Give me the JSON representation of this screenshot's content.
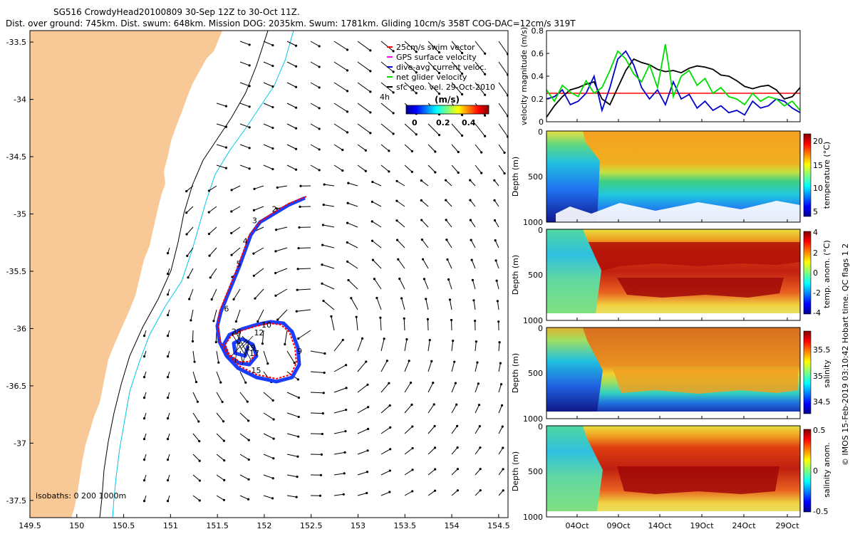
{
  "header": {
    "line1": "SG516 CrowdyHead20100809 30-Sep 12Z to 30-Oct 11Z.",
    "line2": "Dist. over ground: 745km. Dist. swum: 648km. Mission DOG: 2035km. Swum: 1781km. Gliding 10cm/s 358T COG-DAC=12cm/s 319T"
  },
  "footer": {
    "isobaths": "isobaths: 0 200 1000m",
    "credit": "© IMOS 15-Feb-2019 03:10:42 Hobart time. QC flags 1 2"
  },
  "legend": {
    "items": [
      {
        "label": "25cm/s swim vector",
        "color": "#ff0000"
      },
      {
        "label": "GPS surface velocity",
        "color": "#ff00ff"
      },
      {
        "label": "dive-avg current veloc.",
        "color": "#0000cc"
      },
      {
        "label": "net glider velocity",
        "color": "#00dd00"
      },
      {
        "label": "sfc geo. vel. 29-Oct-2010",
        "color": "#000000"
      }
    ],
    "interval": "4h",
    "colorbar_title": "(m/s)",
    "colorbar_ticks": [
      "0",
      "0.2",
      "0.4"
    ]
  },
  "colors": {
    "land": "#f8c896",
    "isobath_200": "#000000",
    "isobath_1000": "#00c8e6",
    "track_blue": "#1a3cff",
    "swim_red": "#ff0000"
  },
  "chart_data": [
    {
      "type": "scatter",
      "name": "track map",
      "x_ticks": [
        "149.5",
        "150",
        "150.5",
        "151",
        "151.5",
        "152",
        "152.5",
        "153",
        "153.5",
        "154",
        "154.5"
      ],
      "y_ticks": [
        "-33.5",
        "-34",
        "-34.5",
        "-35",
        "-35.5",
        "-36",
        "-36.5",
        "-37",
        "-37.5"
      ],
      "xlim": [
        149.5,
        154.6
      ],
      "ylim": [
        -37.65,
        -33.4
      ],
      "day_labels": [
        {
          "label": "2",
          "lon": 152.08,
          "lat": -34.98
        },
        {
          "label": "3",
          "lon": 151.87,
          "lat": -35.08
        },
        {
          "label": "4",
          "lon": 151.77,
          "lat": -35.26
        },
        {
          "label": "5",
          "lon": 151.7,
          "lat": -35.46
        },
        {
          "label": "6",
          "lon": 151.57,
          "lat": -35.85
        },
        {
          "label": "9",
          "lon": 152.35,
          "lat": -36.22
        },
        {
          "label": "10",
          "lon": 151.97,
          "lat": -35.99
        },
        {
          "label": "12",
          "lon": 151.89,
          "lat": -36.06
        },
        {
          "label": "15",
          "lon": 151.86,
          "lat": -36.39
        },
        {
          "label": "17",
          "lon": 151.84,
          "lat": -36.24
        },
        {
          "label": "19",
          "lon": 151.8,
          "lat": -36.19
        },
        {
          "label": "28",
          "lon": 151.65,
          "lat": -36.05
        }
      ]
    },
    {
      "type": "line",
      "name": "velocity panel",
      "ylabel": "velocity magnitude (m/s)",
      "y_ticks": [
        "0",
        "0.2",
        "0.4",
        "0.6",
        "0.8"
      ],
      "ylim": [
        0,
        0.8
      ],
      "reference_line": 0.25,
      "series": [
        {
          "color": "#000000",
          "values": [
            0.04,
            0.14,
            0.22,
            0.28,
            0.3,
            0.33,
            0.35,
            0.2,
            0.15,
            0.3,
            0.45,
            0.55,
            0.52,
            0.5,
            0.46,
            0.44,
            0.45,
            0.43,
            0.47,
            0.49,
            0.48,
            0.46,
            0.41,
            0.4,
            0.36,
            0.31,
            0.29,
            0.31,
            0.32,
            0.28,
            0.2,
            0.22,
            0.3
          ]
        },
        {
          "color": "#0000cc",
          "values": [
            0.2,
            0.22,
            0.28,
            0.15,
            0.18,
            0.25,
            0.4,
            0.1,
            0.3,
            0.55,
            0.62,
            0.5,
            0.3,
            0.2,
            0.28,
            0.15,
            0.35,
            0.2,
            0.24,
            0.12,
            0.18,
            0.1,
            0.14,
            0.08,
            0.1,
            0.06,
            0.18,
            0.12,
            0.14,
            0.2,
            0.18,
            0.12,
            0.08
          ]
        },
        {
          "color": "#00dd00",
          "values": [
            0.28,
            0.18,
            0.32,
            0.26,
            0.22,
            0.36,
            0.25,
            0.3,
            0.45,
            0.62,
            0.55,
            0.42,
            0.35,
            0.5,
            0.3,
            0.68,
            0.22,
            0.4,
            0.45,
            0.32,
            0.38,
            0.25,
            0.3,
            0.22,
            0.2,
            0.15,
            0.25,
            0.18,
            0.22,
            0.2,
            0.14,
            0.18,
            0.1
          ]
        }
      ]
    },
    {
      "type": "heatmap",
      "name": "temperature",
      "ylabel": "Depth (m)",
      "colorbar_label": "temperature (°C)",
      "colorbar_ticks": [
        "20",
        "15",
        "10",
        "5"
      ],
      "y_ticks": [
        "0",
        "500",
        "1000"
      ]
    },
    {
      "type": "heatmap",
      "name": "temperature anomaly",
      "ylabel": "Depth (m)",
      "colorbar_label": "temp. anom. (°C)",
      "colorbar_ticks": [
        "4",
        "2",
        "0",
        "-2",
        "-4"
      ],
      "y_ticks": [
        "0",
        "500",
        "1000"
      ]
    },
    {
      "type": "heatmap",
      "name": "salinity",
      "ylabel": "Depth (m)",
      "colorbar_label": "salinity",
      "colorbar_ticks": [
        "35.5",
        "35",
        "34.5"
      ],
      "y_ticks": [
        "0",
        "500",
        "1000"
      ]
    },
    {
      "type": "heatmap",
      "name": "salinity anomaly",
      "ylabel": "Depth (m)",
      "colorbar_label": "salinity anom.",
      "colorbar_ticks": [
        "0.5",
        "0",
        "-0.5"
      ],
      "y_ticks": [
        "0",
        "500",
        "1000"
      ],
      "x_ticks": [
        "04Oct",
        "09Oct",
        "14Oct",
        "19Oct",
        "24Oct",
        "29Oct"
      ]
    }
  ]
}
